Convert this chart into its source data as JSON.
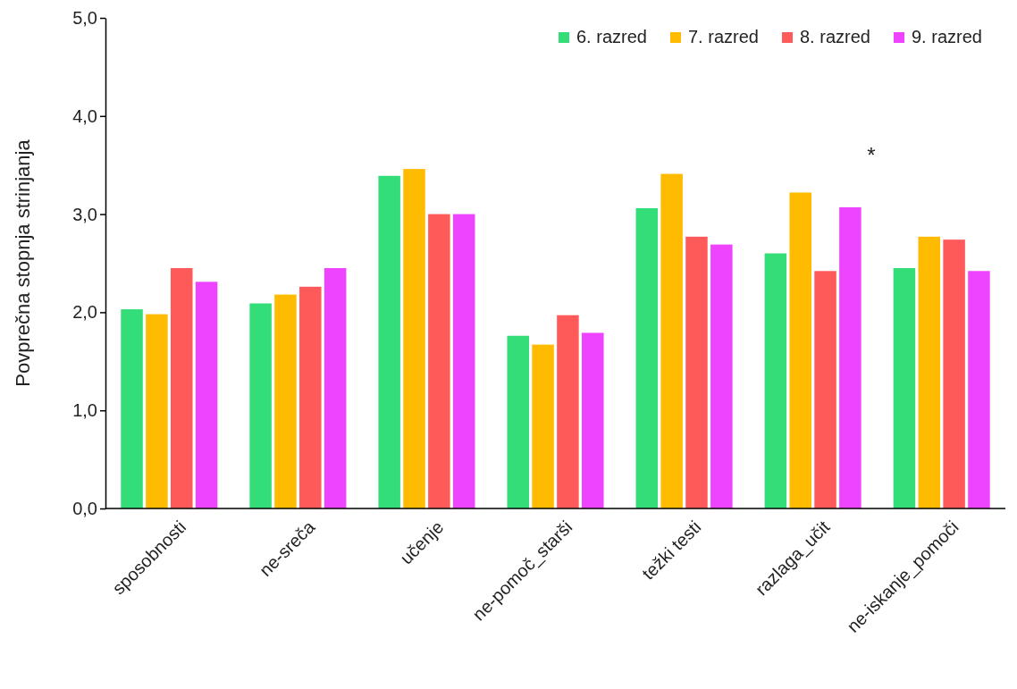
{
  "chart_data": {
    "type": "bar",
    "ylabel": "Povprečna stopnja strinjanja",
    "categories": [
      "sposobnosti",
      "ne-sreča",
      "učenje",
      "ne-pomoč_starši",
      "težki testi",
      "razlaga_učit",
      "ne-iskanje_pomoči"
    ],
    "series": [
      {
        "name": "6. razred",
        "color": "#33dd77",
        "values": [
          2.03,
          2.09,
          3.39,
          1.76,
          3.06,
          2.6,
          2.45
        ]
      },
      {
        "name": "7. razred",
        "color": "#ffbb00",
        "values": [
          1.98,
          2.18,
          3.46,
          1.67,
          3.41,
          3.22,
          2.77
        ]
      },
      {
        "name": "8. razred",
        "color": "#ff5a5a",
        "values": [
          2.45,
          2.26,
          3.0,
          1.97,
          2.77,
          2.42,
          2.74
        ]
      },
      {
        "name": "9. razred",
        "color": "#ee44ff",
        "values": [
          2.31,
          2.45,
          3.0,
          1.79,
          2.69,
          3.07,
          2.42
        ]
      }
    ],
    "ylim": [
      0,
      5
    ],
    "yticks": [
      {
        "value": 0,
        "label": "0,0"
      },
      {
        "value": 1,
        "label": "1,0"
      },
      {
        "value": 2,
        "label": "2,0"
      },
      {
        "value": 3,
        "label": "3,0"
      },
      {
        "value": 4,
        "label": "4,0"
      },
      {
        "value": 5,
        "label": "5,0"
      }
    ],
    "annotations": [
      "*"
    ],
    "grid": false,
    "legend": "top right"
  }
}
